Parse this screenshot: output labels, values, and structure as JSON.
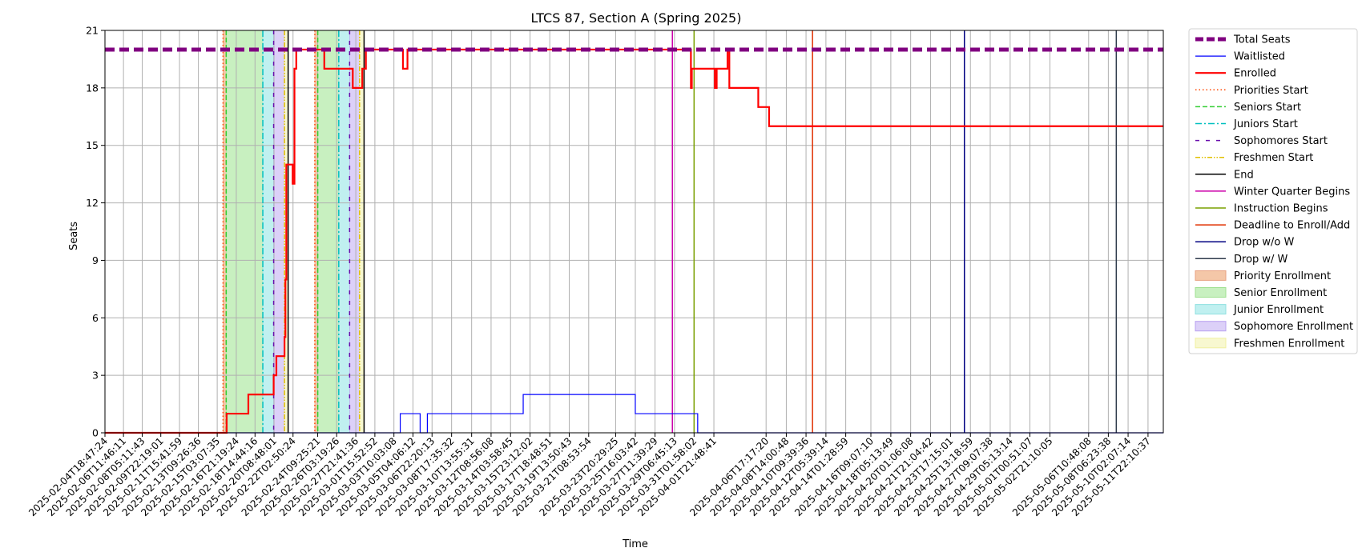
{
  "chart_data": {
    "type": "line",
    "title": "LTCS 87, Section A (Spring 2025)",
    "xlabel": "Time",
    "ylabel": "Seats",
    "ylim": [
      0,
      21
    ],
    "yticks": [
      0,
      3,
      6,
      9,
      12,
      15,
      18,
      21
    ],
    "xlim": [
      "2025-02-04T18:47:24",
      "2025-05-13T08:00:00"
    ],
    "grid": true,
    "legend_position": "outside-right",
    "xtick_labels": [
      "2025-02-04T18:47:24",
      "2025-02-06T11:46:11",
      "2025-02-08T05:11:43",
      "2025-02-09T22:19:01",
      "2025-02-11T15:41:59",
      "2025-02-13T09:26:36",
      "2025-02-15T03:07:35",
      "2025-02-16T21:19:24",
      "2025-02-18T14:44:16",
      "2025-02-20T08:48:01",
      "2025-02-22T02:50:24",
      "2025-02-24T09:25:21",
      "2025-02-26T03:19:26",
      "2025-02-27T21:41:36",
      "2025-03-01T15:52:52",
      "2025-03-03T10:03:08",
      "2025-03-05T04:06:12",
      "2025-03-06T22:20:13",
      "2025-03-08T17:35:32",
      "2025-03-10T13:55:31",
      "2025-03-12T08:56:08",
      "2025-03-14T03:58:45",
      "2025-03-15T23:12:02",
      "2025-03-17T18:48:51",
      "2025-03-19T13:50:43",
      "2025-03-21T08:53:54",
      "2025-03-23T20:29:25",
      "2025-03-25T16:03:42",
      "2025-03-27T11:39:29",
      "2025-03-29T06:45:13",
      "2025-03-31T01:58:02",
      "2025-04-01T21:48:41",
      "2025-04-06T17:17:20",
      "2025-04-08T14:00:48",
      "2025-04-10T09:39:36",
      "2025-04-12T05:39:14",
      "2025-04-14T01:28:59",
      "2025-04-16T09:07:10",
      "2025-04-18T05:13:49",
      "2025-04-20T01:06:08",
      "2025-04-21T21:04:42",
      "2025-04-23T17:15:01",
      "2025-04-25T13:18:59",
      "2025-04-27T09:07:38",
      "2025-04-29T05:13:14",
      "2025-05-01T00:51:07",
      "2025-05-02T21:10:05",
      "2025-05-06T10:48:08",
      "2025-05-08T06:23:38",
      "2025-05-10T02:07:14",
      "2025-05-11T22:10:37"
    ],
    "legend": [
      {
        "label": "Total Seats",
        "kind": "line",
        "color": "#800080",
        "dash": "12,6",
        "width": 5
      },
      {
        "label": "Waitlisted",
        "kind": "line",
        "color": "#0000ff",
        "dash": "",
        "width": 1.2
      },
      {
        "label": "Enrolled",
        "kind": "line",
        "color": "#ff0000",
        "dash": "",
        "width": 2.2
      },
      {
        "label": "Priorities Start",
        "kind": "line",
        "color": "#ff4500",
        "dash": "1.5,3",
        "width": 1.5
      },
      {
        "label": "Seniors Start",
        "kind": "line",
        "color": "#32cd32",
        "dash": "6,3",
        "width": 1.5
      },
      {
        "label": "Juniors Start",
        "kind": "line",
        "color": "#00bfbf",
        "dash": "8,3,2,3",
        "width": 1.5
      },
      {
        "label": "Sophomores Start",
        "kind": "line",
        "color": "#6a0dad",
        "dash": "5,8",
        "width": 1.5
      },
      {
        "label": "Freshmen Start",
        "kind": "line",
        "color": "#e0c000",
        "dash": "6,2,1.5,2,1.5,2",
        "width": 1.5
      },
      {
        "label": "End",
        "kind": "line",
        "color": "#000000",
        "dash": "",
        "width": 1.5
      },
      {
        "label": "Winter Quarter Begins",
        "kind": "line",
        "color": "#cc00aa",
        "dash": "",
        "width": 1.5
      },
      {
        "label": "Instruction Begins",
        "kind": "line",
        "color": "#7aa000",
        "dash": "",
        "width": 1.5
      },
      {
        "label": "Deadline to Enroll/Add",
        "kind": "line",
        "color": "#e03000",
        "dash": "",
        "width": 1.5
      },
      {
        "label": "Drop w/o W",
        "kind": "line",
        "color": "#000080",
        "dash": "",
        "width": 1.5
      },
      {
        "label": "Drop w/ W",
        "kind": "line",
        "color": "#2f3b4c",
        "dash": "",
        "width": 1.5
      },
      {
        "label": "Priority Enrollment",
        "kind": "patch",
        "color": "#f4c7a8",
        "border": "#e8a080"
      },
      {
        "label": "Senior Enrollment",
        "kind": "patch",
        "color": "#c8f0c0",
        "border": "#9fe090"
      },
      {
        "label": "Junior Enrollment",
        "kind": "patch",
        "color": "#c0f0f0",
        "border": "#90e0e0"
      },
      {
        "label": "Sophomore Enrollment",
        "kind": "patch",
        "color": "#dcd0f8",
        "border": "#b8a0f0"
      },
      {
        "label": "Freshmen Enrollment",
        "kind": "patch",
        "color": "#f8f8d0",
        "border": "#f0f0a0"
      }
    ],
    "shaded_periods": [
      {
        "type": "Priority Enrollment",
        "start": "2025-02-15T16:00:00",
        "end": "2025-02-15T23:00:00"
      },
      {
        "type": "Senior Enrollment",
        "start": "2025-02-15T23:00:00",
        "end": "2025-02-19T08:00:00"
      },
      {
        "type": "Junior Enrollment",
        "start": "2025-02-19T08:00:00",
        "end": "2025-02-20T08:00:00"
      },
      {
        "type": "Sophomore Enrollment",
        "start": "2025-02-20T08:00:00",
        "end": "2025-02-21T08:00:00"
      },
      {
        "type": "Freshmen Enrollment",
        "start": "2025-02-21T08:00:00",
        "end": "2025-02-21T16:00:00"
      },
      {
        "type": "Priority Enrollment",
        "start": "2025-02-24T03:00:00",
        "end": "2025-02-24T09:30:00"
      },
      {
        "type": "Senior Enrollment",
        "start": "2025-02-24T09:30:00",
        "end": "2025-02-26T08:00:00"
      },
      {
        "type": "Junior Enrollment",
        "start": "2025-02-26T08:00:00",
        "end": "2025-02-27T08:00:00"
      },
      {
        "type": "Sophomore Enrollment",
        "start": "2025-02-27T08:00:00",
        "end": "2025-02-28T06:00:00"
      },
      {
        "type": "Freshmen Enrollment",
        "start": "2025-02-28T06:00:00",
        "end": "2025-02-28T16:00:00"
      }
    ],
    "event_lines": [
      {
        "type": "Priorities Start",
        "x": "2025-02-15T16:00:00"
      },
      {
        "type": "Seniors Start",
        "x": "2025-02-15T23:00:00"
      },
      {
        "type": "Juniors Start",
        "x": "2025-02-19T08:00:00"
      },
      {
        "type": "Sophomores Start",
        "x": "2025-02-20T08:00:00"
      },
      {
        "type": "Freshmen Start",
        "x": "2025-02-21T08:00:00"
      },
      {
        "type": "End",
        "x": "2025-02-21T16:00:00"
      },
      {
        "type": "Priorities Start",
        "x": "2025-02-24T03:00:00"
      },
      {
        "type": "Seniors Start",
        "x": "2025-02-24T09:30:00"
      },
      {
        "type": "Juniors Start",
        "x": "2025-02-26T08:00:00"
      },
      {
        "type": "Sophomores Start",
        "x": "2025-02-27T08:00:00"
      },
      {
        "type": "Freshmen Start",
        "x": "2025-02-28T06:00:00"
      },
      {
        "type": "End",
        "x": "2025-02-28T16:00:00"
      },
      {
        "type": "Winter Quarter Begins",
        "x": "2025-03-29T02:00:00"
      },
      {
        "type": "Instruction Begins",
        "x": "2025-03-31T02:00:00"
      },
      {
        "type": "Deadline to Enroll/Add",
        "x": "2025-04-11T00:00:00"
      },
      {
        "type": "Drop w/o W",
        "x": "2025-04-25T00:00:00"
      },
      {
        "type": "Drop w/ W",
        "x": "2025-05-09T00:00:00"
      }
    ],
    "series": [
      {
        "name": "Total Seats",
        "points": [
          [
            "2025-02-04T18:47:24",
            20
          ],
          [
            "2025-05-13T08:00:00",
            20
          ]
        ]
      },
      {
        "name": "Enrolled",
        "points": [
          [
            "2025-02-04T18:47:24",
            0
          ],
          [
            "2025-02-16T00:00:00",
            0
          ],
          [
            "2025-02-16T00:00:00",
            1
          ],
          [
            "2025-02-18T00:00:00",
            1
          ],
          [
            "2025-02-18T00:00:00",
            2
          ],
          [
            "2025-02-20T08:00:00",
            2
          ],
          [
            "2025-02-20T08:00:00",
            3
          ],
          [
            "2025-02-20T14:00:00",
            3
          ],
          [
            "2025-02-20T14:00:00",
            4
          ],
          [
            "2025-02-21T08:00:00",
            4
          ],
          [
            "2025-02-21T08:00:00",
            5
          ],
          [
            "2025-02-21T10:00:00",
            5
          ],
          [
            "2025-02-21T10:00:00",
            8
          ],
          [
            "2025-02-21T12:00:00",
            8
          ],
          [
            "2025-02-21T12:00:00",
            14
          ],
          [
            "2025-02-22T02:00:00",
            14
          ],
          [
            "2025-02-22T02:00:00",
            13
          ],
          [
            "2025-02-22T06:00:00",
            13
          ],
          [
            "2025-02-22T06:00:00",
            19
          ],
          [
            "2025-02-22T10:00:00",
            19
          ],
          [
            "2025-02-22T10:00:00",
            20
          ],
          [
            "2025-02-25T00:00:00",
            20
          ],
          [
            "2025-02-25T00:00:00",
            19
          ],
          [
            "2025-02-27T15:00:00",
            19
          ],
          [
            "2025-02-27T15:00:00",
            18
          ],
          [
            "2025-02-28T12:00:00",
            18
          ],
          [
            "2025-02-28T12:00:00",
            19
          ],
          [
            "2025-02-28T20:00:00",
            19
          ],
          [
            "2025-02-28T20:00:00",
            20
          ],
          [
            "2025-03-04T06:00:00",
            20
          ],
          [
            "2025-03-04T06:00:00",
            19
          ],
          [
            "2025-03-04T16:00:00",
            19
          ],
          [
            "2025-03-04T16:00:00",
            20
          ],
          [
            "2025-03-30T19:00:00",
            20
          ],
          [
            "2025-03-30T19:00:00",
            18
          ],
          [
            "2025-03-30T21:00:00",
            18
          ],
          [
            "2025-03-30T21:00:00",
            19
          ],
          [
            "2025-04-02T00:00:00",
            19
          ],
          [
            "2025-04-02T00:00:00",
            18
          ],
          [
            "2025-04-02T04:00:00",
            18
          ],
          [
            "2025-04-02T04:00:00",
            19
          ],
          [
            "2025-04-03T04:00:00",
            19
          ],
          [
            "2025-04-03T04:00:00",
            20
          ],
          [
            "2025-04-03T08:00:00",
            20
          ],
          [
            "2025-04-03T08:00:00",
            18
          ],
          [
            "2025-04-06T00:00:00",
            18
          ],
          [
            "2025-04-06T00:00:00",
            17
          ],
          [
            "2025-04-07T00:00:00",
            17
          ],
          [
            "2025-04-07T00:00:00",
            16
          ],
          [
            "2025-05-13T08:00:00",
            16
          ]
        ]
      },
      {
        "name": "Waitlisted",
        "points": [
          [
            "2025-02-04T18:47:24",
            0
          ],
          [
            "2025-03-04T00:00:00",
            0
          ],
          [
            "2025-03-04T00:00:00",
            1
          ],
          [
            "2025-03-05T20:00:00",
            1
          ],
          [
            "2025-03-05T20:00:00",
            0
          ],
          [
            "2025-03-06T12:00:00",
            0
          ],
          [
            "2025-03-06T12:00:00",
            1
          ],
          [
            "2025-03-15T08:00:00",
            1
          ],
          [
            "2025-03-15T08:00:00",
            2
          ],
          [
            "2025-03-25T16:00:00",
            2
          ],
          [
            "2025-03-25T16:00:00",
            1
          ],
          [
            "2025-03-31T10:00:00",
            1
          ],
          [
            "2025-03-31T10:00:00",
            0
          ],
          [
            "2025-05-13T08:00:00",
            0
          ]
        ]
      }
    ]
  }
}
